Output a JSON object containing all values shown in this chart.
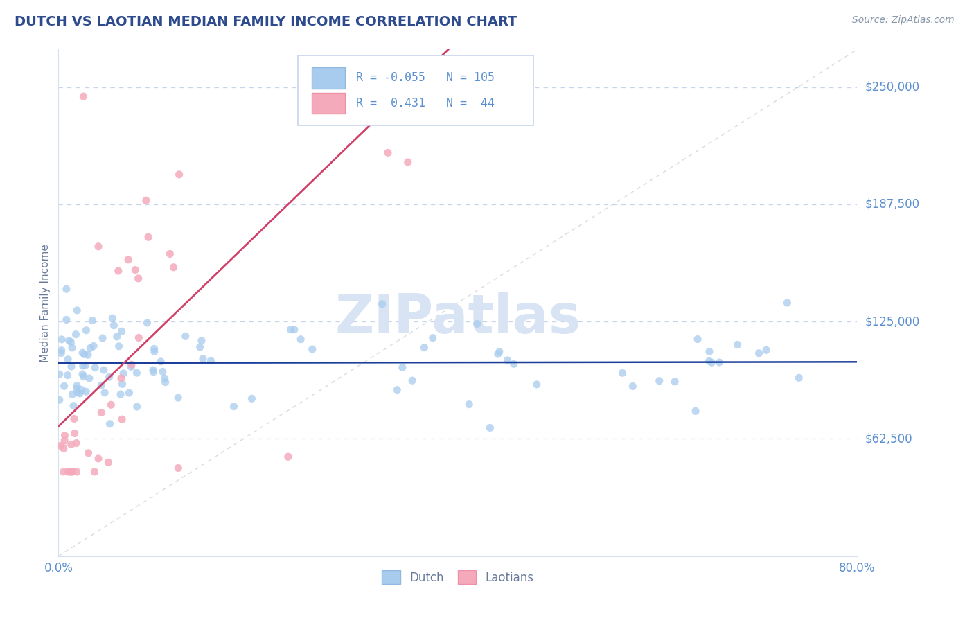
{
  "title": "DUTCH VS LAOTIAN MEDIAN FAMILY INCOME CORRELATION CHART",
  "source_text": "Source: ZipAtlas.com",
  "ylabel": "Median Family Income",
  "xlim": [
    0.0,
    0.8
  ],
  "ylim": [
    0,
    270000
  ],
  "ytick_vals": [
    62500,
    125000,
    187500,
    250000
  ],
  "ytick_labels": [
    "$62,500",
    "$125,000",
    "$187,500",
    "$250,000"
  ],
  "xtick_vals": [
    0.0,
    0.8
  ],
  "xtick_labels": [
    "0.0%",
    "80.0%"
  ],
  "legend_dutch_R": "-0.055",
  "legend_dutch_N": "105",
  "legend_laotian_R": "0.431",
  "legend_laotian_N": "44",
  "dutch_scatter_color": "#A8CCEE",
  "laotian_scatter_color": "#F4AABB",
  "dutch_line_color": "#1A3E9A",
  "laotian_line_color": "#D04068",
  "diag_line_color": "#D0D0D8",
  "background_color": "#FFFFFF",
  "grid_color": "#C8D4EC",
  "title_color": "#2E4B8E",
  "axis_label_color": "#6A7A9A",
  "tick_label_color": "#5A8FD0",
  "watermark_color": "#D8E4F4",
  "legend_box_color": "#E8F0F8",
  "source_color": "#8898AA"
}
